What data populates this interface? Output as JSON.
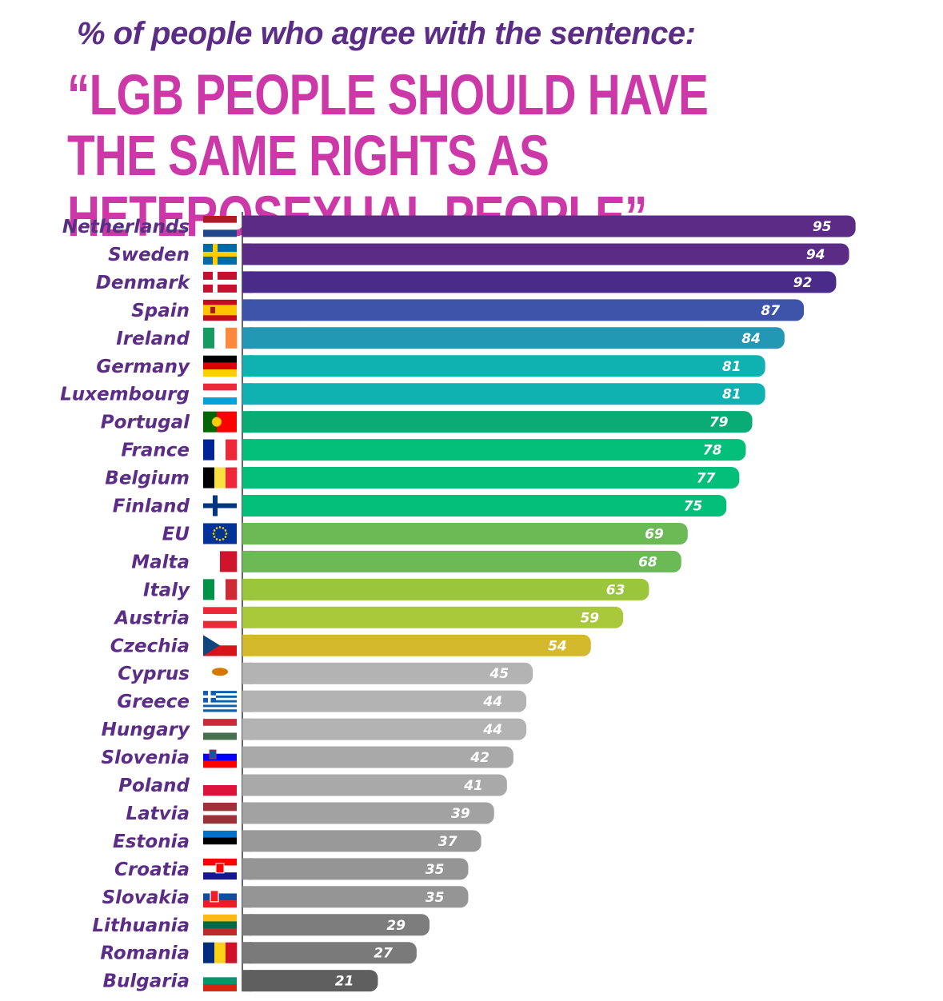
{
  "header": {
    "subtitle": "% of people who agree with the sentence:",
    "title": "“LGB PEOPLE SHOULD HAVE THE SAME RIGHTS AS HETEROSEXUAL PEOPLE”"
  },
  "chart_data": {
    "type": "bar",
    "orientation": "horizontal",
    "title": "“LGB PEOPLE SHOULD HAVE THE SAME RIGHTS AS HETEROSEXUAL PEOPLE”",
    "subtitle": "% of people who agree with the sentence:",
    "xlabel": "",
    "ylabel": "",
    "xlim": [
      0,
      100
    ],
    "grid": false,
    "legend": "none",
    "data_labels": "inside-end",
    "categories": [
      "Netherlands",
      "Sweden",
      "Denmark",
      "Spain",
      "Ireland",
      "Germany",
      "Luxembourg",
      "Portugal",
      "France",
      "Belgium",
      "Finland",
      "EU",
      "Malta",
      "Italy",
      "Austria",
      "Czechia",
      "Cyprus",
      "Greece",
      "Hungary",
      "Slovenia",
      "Poland",
      "Latvia",
      "Estonia",
      "Croatia",
      "Slovakia",
      "Lithuania",
      "Romania",
      "Bulgaria"
    ],
    "values": [
      95,
      94,
      92,
      87,
      84,
      81,
      81,
      79,
      78,
      77,
      75,
      69,
      68,
      63,
      59,
      54,
      45,
      44,
      44,
      42,
      41,
      39,
      37,
      35,
      35,
      29,
      27,
      21
    ],
    "colors": [
      "#5b2b85",
      "#5b2b85",
      "#4a2b8a",
      "#3d54aa",
      "#2398b4",
      "#0fb2b0",
      "#0fb2b0",
      "#09ac74",
      "#04bf7a",
      "#04bf7a",
      "#04bf7a",
      "#6cba55",
      "#6cba55",
      "#9bc53a",
      "#a9c83a",
      "#d4b92d",
      "#b3b3b3",
      "#b3b3b3",
      "#b3b3b3",
      "#a9a9a9",
      "#a9a9a9",
      "#a2a2a2",
      "#999999",
      "#959595",
      "#959595",
      "#7d7d7d",
      "#7a7a7a",
      "#5f5f5f"
    ],
    "flags": [
      "netherlands-flag",
      "sweden-flag",
      "denmark-flag",
      "spain-flag",
      "ireland-flag",
      "germany-flag",
      "luxembourg-flag",
      "portugal-flag",
      "france-flag",
      "belgium-flag",
      "finland-flag",
      "eu-flag",
      "malta-flag",
      "italy-flag",
      "austria-flag",
      "czechia-flag",
      "cyprus-flag",
      "greece-flag",
      "hungary-flag",
      "slovenia-flag",
      "poland-flag",
      "latvia-flag",
      "estonia-flag",
      "croatia-flag",
      "slovakia-flag",
      "lithuania-flag",
      "romania-flag",
      "bulgaria-flag"
    ]
  }
}
